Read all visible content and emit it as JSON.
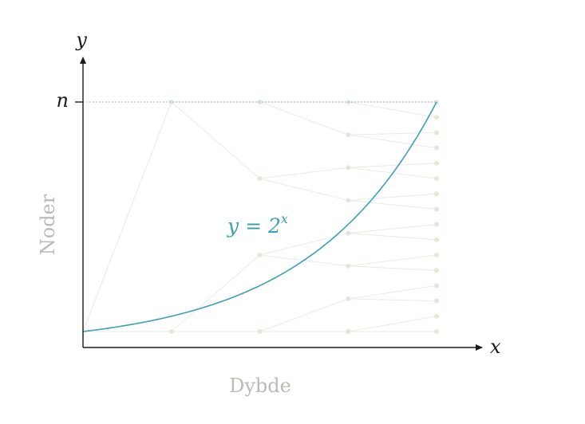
{
  "chart_data": {
    "type": "line",
    "xlabel": "Dybde",
    "ylabel": "Noder",
    "x_axis_symbol": "x",
    "y_axis_symbol": "y",
    "y_marker_label": "n",
    "curve": {
      "label_base": "y = 2",
      "label_exponent": "x",
      "x": [
        0,
        1,
        2,
        3,
        4
      ],
      "y": [
        1,
        2,
        4,
        8,
        16
      ]
    },
    "xlim": [
      0,
      4.5
    ],
    "ylim": [
      0,
      16
    ],
    "tree_levels": [
      1,
      2,
      3,
      4
    ],
    "grid": false,
    "colors": {
      "curve": "#3f9fb6",
      "axes": "#1a1a1a",
      "muted_text": "#b8bcb4",
      "tree_nodes": "#dfe8da",
      "tree_edges": "#e6ede2",
      "marker_line": "#8fa5a8"
    }
  }
}
